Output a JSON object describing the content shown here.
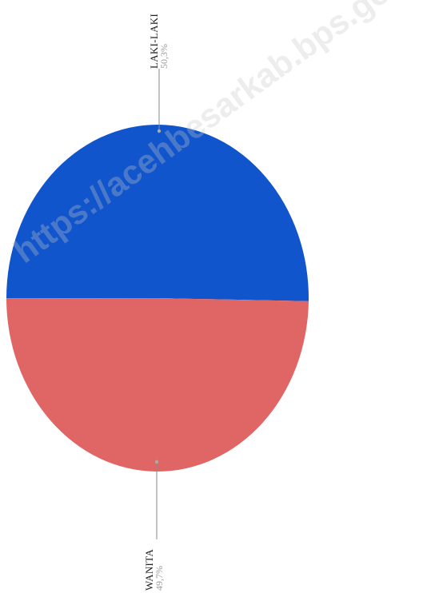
{
  "chart_data": {
    "type": "pie",
    "orientation": "rotated -90 degrees",
    "slices": [
      {
        "label": "LAKI-LAKI",
        "value": 50.3,
        "value_label": "50,3%",
        "color": "#1155cc"
      },
      {
        "label": "WANITA",
        "value": 49.7,
        "value_label": "49,7%",
        "color": "#e06666"
      }
    ]
  },
  "watermark": "https://acehbesarkab.bps.go.id"
}
